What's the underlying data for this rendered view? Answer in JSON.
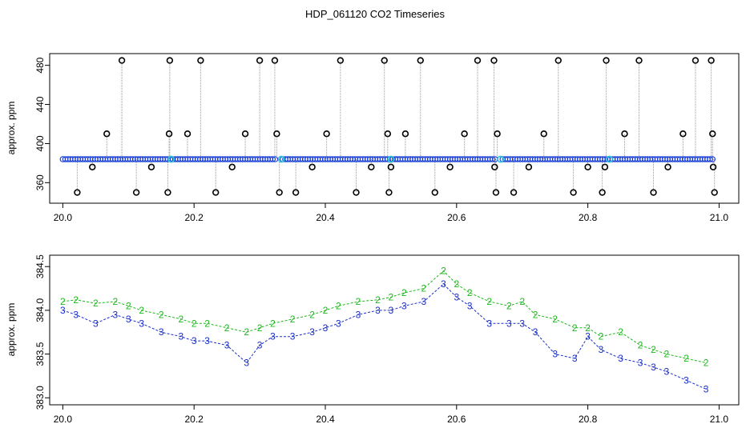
{
  "title": "HDP_061120  CO2 Timeseries",
  "chart_data": [
    {
      "type": "scatter",
      "ylabel": "approx. ppm",
      "xlim": [
        19.98,
        21.03
      ],
      "ylim": [
        339,
        492
      ],
      "xticks": [
        20.0,
        20.2,
        20.4,
        20.6,
        20.8,
        21.0
      ],
      "xtick_labels": [
        "20.0",
        "20.2",
        "20.4",
        "20.6",
        "20.8",
        "21.0"
      ],
      "yticks": [
        360,
        400,
        440,
        480
      ],
      "ytick_labels": [
        "360",
        "400",
        "440",
        "480"
      ],
      "baseline": {
        "x_start": 20.0,
        "x_end": 20.99,
        "value": 384,
        "color": "#1a3fd6"
      },
      "baseline_gaps": [
        20.33,
        20.665
      ],
      "flagged_points": {
        "color": "#000000",
        "x": [
          20.022,
          20.045,
          20.067,
          20.09,
          20.112,
          20.135,
          20.16,
          20.162,
          20.163,
          20.19,
          20.21,
          20.233,
          20.258,
          20.278,
          20.3,
          20.323,
          20.326,
          20.33,
          20.355,
          20.38,
          20.402,
          20.423,
          20.447,
          20.47,
          20.49,
          20.495,
          20.497,
          20.5,
          20.522,
          20.545,
          20.567,
          20.59,
          20.612,
          20.632,
          20.657,
          20.658,
          20.66,
          20.662,
          20.687,
          20.71,
          20.733,
          20.755,
          20.778,
          20.8,
          20.822,
          20.826,
          20.828,
          20.856,
          20.878,
          20.9,
          20.922,
          20.945,
          20.964,
          20.988,
          20.99,
          20.991,
          20.993
        ],
        "y": [
          350,
          376,
          410,
          485,
          350,
          376,
          350,
          410,
          485,
          410,
          485,
          350,
          376,
          410,
          485,
          485,
          410,
          350,
          350,
          376,
          410,
          485,
          350,
          376,
          485,
          410,
          350,
          376,
          410,
          485,
          350,
          376,
          410,
          485,
          485,
          376,
          350,
          410,
          350,
          376,
          410,
          485,
          350,
          376,
          350,
          376,
          485,
          410,
          485,
          350,
          376,
          410,
          485,
          485,
          410,
          376,
          350
        ]
      },
      "highlight_points": {
        "color": "#29c6d6",
        "x": [
          20.165,
          20.333,
          20.5,
          20.667,
          20.833
        ],
        "y": [
          384,
          384,
          384,
          384,
          384
        ]
      }
    },
    {
      "type": "line",
      "ylabel": "approx. ppm",
      "xlim": [
        19.98,
        21.03
      ],
      "ylim": [
        382.92,
        384.63
      ],
      "xticks": [
        20.0,
        20.2,
        20.4,
        20.6,
        20.8,
        21.0
      ],
      "xtick_labels": [
        "20.0",
        "20.2",
        "20.4",
        "20.6",
        "20.8",
        "21.0"
      ],
      "yticks": [
        383.0,
        383.5,
        384.0,
        384.5
      ],
      "ytick_labels": [
        "383.0",
        "383.5",
        "384.0",
        "384.5"
      ],
      "series": [
        {
          "marker": "2",
          "color": "#1db81d",
          "x": [
            20.0,
            20.02,
            20.05,
            20.08,
            20.1,
            20.12,
            20.15,
            20.18,
            20.2,
            20.22,
            20.25,
            20.28,
            20.3,
            20.32,
            20.35,
            20.38,
            20.4,
            20.42,
            20.45,
            20.48,
            20.5,
            20.52,
            20.55,
            20.58,
            20.6,
            20.62,
            20.65,
            20.68,
            20.7,
            20.72,
            20.75,
            20.78,
            20.8,
            20.82,
            20.85,
            20.88,
            20.9,
            20.92,
            20.95,
            20.98
          ],
          "y": [
            384.1,
            384.12,
            384.08,
            384.1,
            384.05,
            384.0,
            383.95,
            383.9,
            383.85,
            383.85,
            383.8,
            383.75,
            383.8,
            383.85,
            383.9,
            383.95,
            384.0,
            384.05,
            384.1,
            384.12,
            384.15,
            384.2,
            384.25,
            384.45,
            384.3,
            384.2,
            384.1,
            384.05,
            384.1,
            383.95,
            383.9,
            383.8,
            383.8,
            383.7,
            383.75,
            383.6,
            383.55,
            383.5,
            383.45,
            383.4
          ]
        },
        {
          "marker": "3",
          "color": "#1a2fc8",
          "x": [
            20.0,
            20.02,
            20.05,
            20.08,
            20.1,
            20.12,
            20.15,
            20.18,
            20.2,
            20.22,
            20.25,
            20.28,
            20.3,
            20.32,
            20.35,
            20.38,
            20.4,
            20.42,
            20.45,
            20.48,
            20.5,
            20.52,
            20.55,
            20.58,
            20.6,
            20.62,
            20.65,
            20.68,
            20.7,
            20.72,
            20.75,
            20.78,
            20.8,
            20.82,
            20.85,
            20.88,
            20.9,
            20.92,
            20.95,
            20.98
          ],
          "y": [
            384.0,
            383.95,
            383.85,
            383.95,
            383.9,
            383.85,
            383.75,
            383.7,
            383.65,
            383.65,
            383.6,
            383.4,
            383.6,
            383.7,
            383.7,
            383.75,
            383.8,
            383.85,
            383.95,
            384.0,
            384.0,
            384.05,
            384.1,
            384.3,
            384.15,
            384.05,
            383.85,
            383.85,
            383.85,
            383.75,
            383.5,
            383.45,
            383.7,
            383.55,
            383.45,
            383.4,
            383.35,
            383.3,
            383.2,
            383.1
          ]
        }
      ]
    }
  ]
}
